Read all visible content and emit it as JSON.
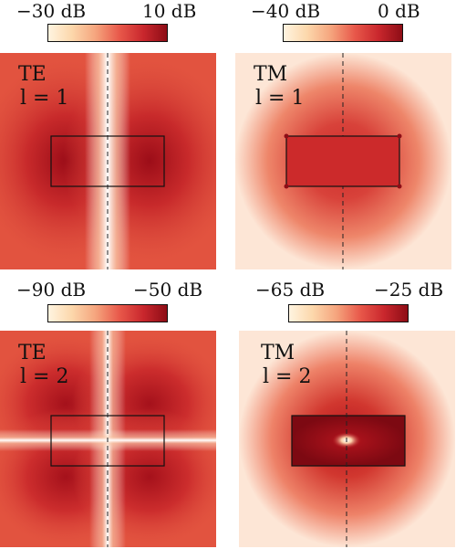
{
  "colors": {
    "colormap": [
      "#fff4e0",
      "#fcd7ab",
      "#f5a47d",
      "#e8584a",
      "#c9272d",
      "#8e0d16"
    ]
  },
  "panels": [
    {
      "id": "te-l1",
      "mode": "TE",
      "l_label": "l = 1",
      "colorbar": {
        "min_label": "−30 dB",
        "max_label": "10 dB"
      }
    },
    {
      "id": "tm-l1",
      "mode": "TM",
      "l_label": "l = 1",
      "colorbar": {
        "min_label": "−40 dB",
        "max_label": "0 dB"
      }
    },
    {
      "id": "te-l2",
      "mode": "TE",
      "l_label": "l = 2",
      "colorbar": {
        "min_label": "−90 dB",
        "max_label": "−50 dB"
      }
    },
    {
      "id": "tm-l2",
      "mode": "TM",
      "l_label": "l = 2",
      "colorbar": {
        "min_label": "−65 dB",
        "max_label": "−25 dB"
      }
    }
  ]
}
